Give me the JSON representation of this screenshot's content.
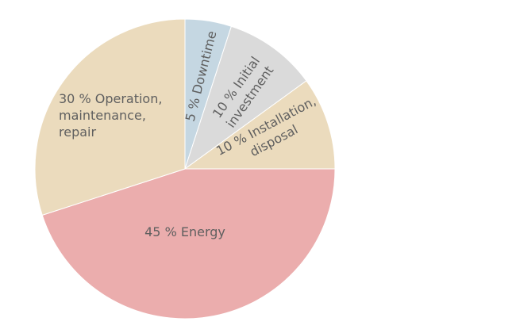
{
  "chart_data": {
    "type": "pie",
    "title": "",
    "start": "12 o'clock",
    "direction": "clockwise",
    "label_color": "#5f5f5f",
    "slices": [
      {
        "value": 5,
        "unit": "%",
        "label_lines": [
          "5 % Downtime"
        ],
        "color": "#c5d7e2"
      },
      {
        "value": 10,
        "unit": "%",
        "label_lines": [
          "10 % Initial",
          "investment"
        ],
        "color": "#dadada"
      },
      {
        "value": 10,
        "unit": "%",
        "label_lines": [
          "10 % Installation,",
          "disposal"
        ],
        "color": "#ebdbbd"
      },
      {
        "value": 45,
        "unit": "%",
        "label_lines": [
          "45 % Energy"
        ],
        "color": "#ebadad"
      },
      {
        "value": 30,
        "unit": "%",
        "label_lines": [
          "30 % Operation,",
          "maintenance,",
          "repair"
        ],
        "color": "#ebdbbd"
      }
    ]
  }
}
